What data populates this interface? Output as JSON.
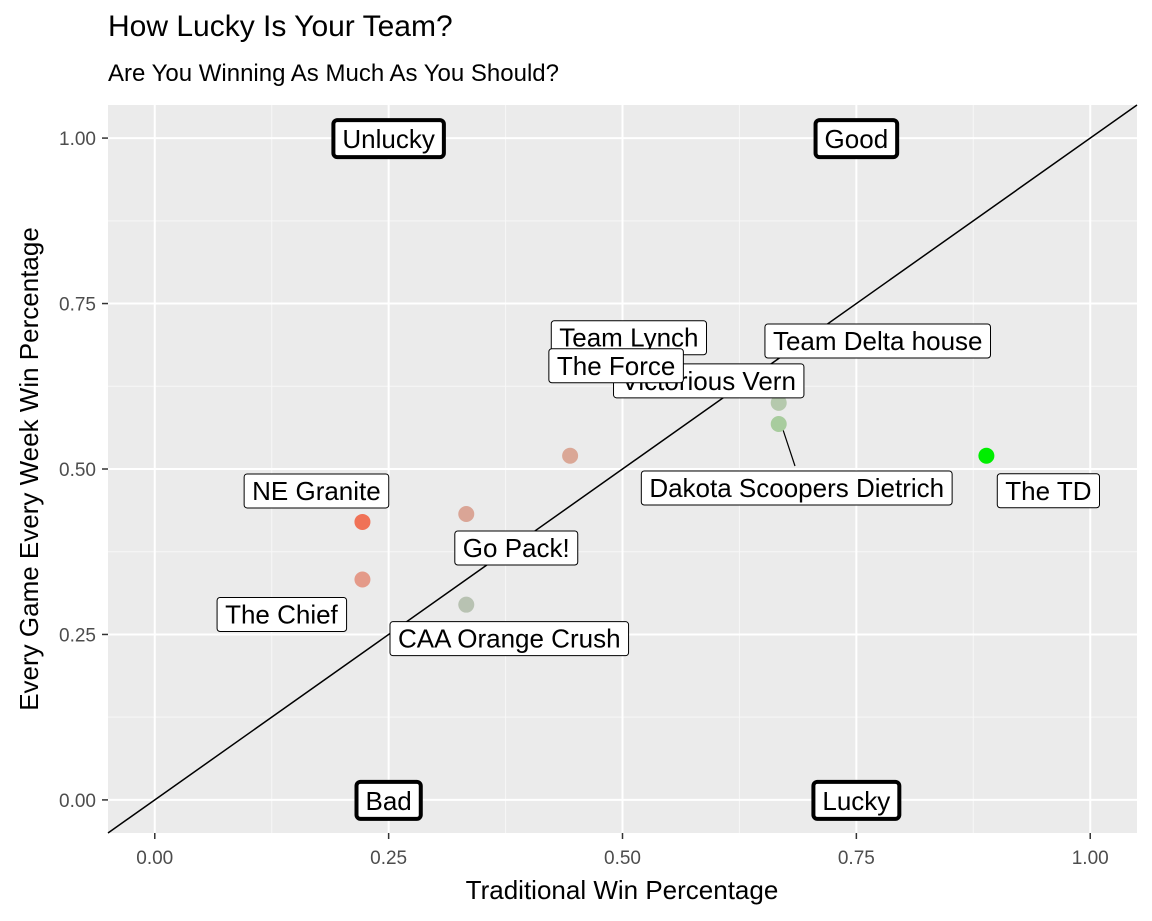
{
  "chart_data": {
    "type": "scatter",
    "title": "How Lucky Is Your Team?",
    "subtitle": "Are You Winning As Much As You Should?",
    "xlabel": "Traditional Win Percentage",
    "ylabel": "Every Game Every Week Win Percentage",
    "xlim": [
      -0.05,
      1.05
    ],
    "ylim": [
      -0.05,
      1.05
    ],
    "xticks": [
      0.0,
      0.25,
      0.5,
      0.75,
      1.0
    ],
    "xtick_labels": [
      "0.00",
      "0.25",
      "0.50",
      "0.75",
      "1.00"
    ],
    "yticks": [
      0.0,
      0.25,
      0.5,
      0.75,
      1.0
    ],
    "ytick_labels": [
      "0.00",
      "0.25",
      "0.50",
      "0.75",
      "1.00"
    ],
    "grid": true,
    "reference_line": {
      "slope": 1,
      "intercept": 0
    },
    "points": [
      {
        "team": "The TD",
        "x": 0.889,
        "y": 0.52,
        "color": "#00ee00"
      },
      {
        "team": "Team Delta house",
        "x": 0.667,
        "y": 0.63,
        "color": "#b7c3b0"
      },
      {
        "team": "Victorious Vern",
        "x": 0.667,
        "y": 0.6,
        "color": "#b5c9ad"
      },
      {
        "team": "Dakota Scoopers Dietrich",
        "x": 0.667,
        "y": 0.568,
        "color": "#a8cc9e"
      },
      {
        "team": "Team Lynch",
        "x": 0.556,
        "y": 0.653,
        "color": "#e0a394"
      },
      {
        "team": "The Force",
        "x": 0.444,
        "y": 0.52,
        "color": "#daa796"
      },
      {
        "team": "Go Pack!",
        "x": 0.333,
        "y": 0.432,
        "color": "#daa596"
      },
      {
        "team": "NE Granite",
        "x": 0.222,
        "y": 0.42,
        "color": "#f07257"
      },
      {
        "team": "The Chief",
        "x": 0.222,
        "y": 0.333,
        "color": "#e49a89"
      },
      {
        "team": "CAA Orange Crush",
        "x": 0.333,
        "y": 0.295,
        "color": "#b8c2b2"
      }
    ],
    "quadrant_labels": [
      {
        "text": "Unlucky",
        "x": 0.25,
        "y": 1.0
      },
      {
        "text": "Good",
        "x": 0.75,
        "y": 1.0
      },
      {
        "text": "Bad",
        "x": 0.25,
        "y": 0.0
      },
      {
        "text": "Lucky",
        "x": 0.75,
        "y": 0.0
      }
    ]
  }
}
